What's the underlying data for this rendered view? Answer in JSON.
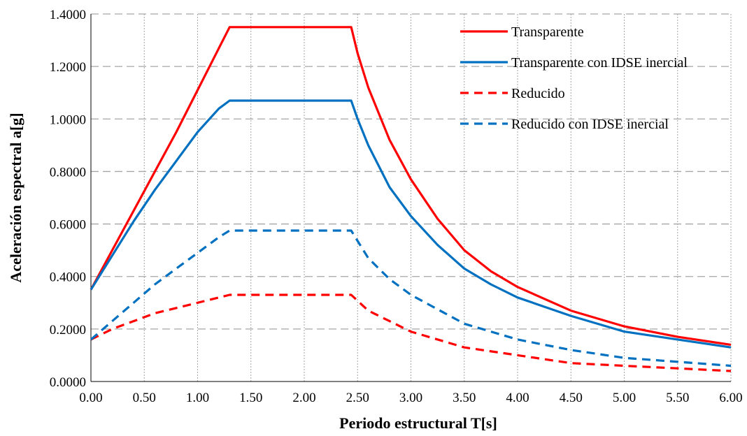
{
  "chart_data": {
    "type": "line",
    "xlabel": "Periodo estructural T[s]",
    "ylabel": "Aceleración espectral a[g]",
    "xlim": [
      0,
      6
    ],
    "ylim": [
      0,
      1.4
    ],
    "x_ticks": [
      "0.00",
      "0.50",
      "1.00",
      "1.50",
      "2.00",
      "2.50",
      "3.00",
      "3.50",
      "4.00",
      "4.50",
      "5.00",
      "5.50",
      "6.00"
    ],
    "y_ticks": [
      "0.0000",
      "0.2000",
      "0.4000",
      "0.6000",
      "0.8000",
      "1.0000",
      "1.2000",
      "1.4000"
    ],
    "grid": {
      "vertical": "dotted",
      "horizontal": "dashed"
    },
    "legend": "top-right",
    "series": [
      {
        "name": "Transparente",
        "color": "#ff0000",
        "dash": "solid",
        "x": [
          0,
          0.2,
          0.4,
          0.6,
          0.8,
          1.0,
          1.2,
          1.3,
          1.5,
          2.0,
          2.44,
          2.5,
          2.6,
          2.8,
          3.0,
          3.25,
          3.5,
          3.75,
          4.0,
          4.5,
          5.0,
          5.5,
          6.0
        ],
        "y": [
          0.35,
          0.5,
          0.65,
          0.8,
          0.95,
          1.11,
          1.27,
          1.35,
          1.35,
          1.35,
          1.35,
          1.25,
          1.12,
          0.92,
          0.77,
          0.62,
          0.5,
          0.42,
          0.36,
          0.27,
          0.21,
          0.17,
          0.14
        ]
      },
      {
        "name": "Transparente con IDSE inercial",
        "color": "#0070c0",
        "dash": "solid",
        "x": [
          0,
          0.2,
          0.4,
          0.6,
          0.8,
          1.0,
          1.2,
          1.3,
          1.5,
          2.0,
          2.44,
          2.5,
          2.6,
          2.8,
          3.0,
          3.25,
          3.5,
          3.75,
          4.0,
          4.5,
          5.0,
          5.5,
          6.0
        ],
        "y": [
          0.35,
          0.48,
          0.61,
          0.73,
          0.84,
          0.95,
          1.04,
          1.07,
          1.07,
          1.07,
          1.07,
          1.0,
          0.9,
          0.74,
          0.63,
          0.52,
          0.43,
          0.37,
          0.32,
          0.25,
          0.19,
          0.16,
          0.13
        ]
      },
      {
        "name": "Reducido",
        "color": "#ff0000",
        "dash": "dashed",
        "x": [
          0,
          0.2,
          0.4,
          0.6,
          0.8,
          1.0,
          1.2,
          1.3,
          1.5,
          2.0,
          2.44,
          2.6,
          2.8,
          3.0,
          3.5,
          4.0,
          4.5,
          5.0,
          5.5,
          6.0
        ],
        "y": [
          0.16,
          0.2,
          0.23,
          0.26,
          0.28,
          0.3,
          0.32,
          0.33,
          0.33,
          0.33,
          0.33,
          0.27,
          0.23,
          0.19,
          0.13,
          0.1,
          0.07,
          0.06,
          0.05,
          0.04
        ]
      },
      {
        "name": "Reducido con IDSE inercial",
        "color": "#0070c0",
        "dash": "dashed",
        "x": [
          0,
          0.2,
          0.4,
          0.6,
          0.8,
          1.0,
          1.2,
          1.3,
          1.5,
          2.0,
          2.44,
          2.6,
          2.8,
          3.0,
          3.5,
          4.0,
          4.5,
          5.0,
          5.5,
          6.0
        ],
        "y": [
          0.16,
          0.23,
          0.3,
          0.37,
          0.43,
          0.49,
          0.55,
          0.575,
          0.575,
          0.575,
          0.575,
          0.47,
          0.39,
          0.33,
          0.22,
          0.16,
          0.12,
          0.09,
          0.075,
          0.06
        ]
      }
    ]
  }
}
